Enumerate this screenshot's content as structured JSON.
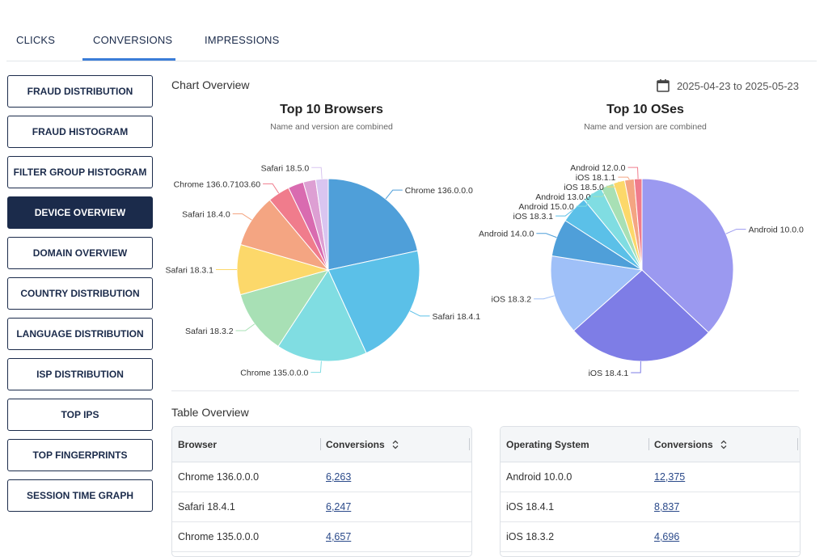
{
  "tabs": [
    "CLICKS",
    "CONVERSIONS",
    "IMPRESSIONS"
  ],
  "sidebar": [
    "FRAUD DISTRIBUTION",
    "FRAUD HISTOGRAM",
    "FILTER GROUP HISTOGRAM",
    "DEVICE OVERVIEW",
    "DOMAIN OVERVIEW",
    "COUNTRY DISTRIBUTION",
    "LANGUAGE DISTRIBUTION",
    "ISP DISTRIBUTION",
    "TOP IPS",
    "TOP FINGERPRINTS",
    "SESSION TIME GRAPH"
  ],
  "chart_overview": {
    "title": "Chart Overview",
    "date_range": "2025-04-23 to 2025-05-23"
  },
  "chart_data": [
    {
      "type": "pie",
      "title": "Top 10 Browsers",
      "subtitle": "Name and version are combined",
      "categories": [
        "Chrome 136.0.0.0",
        "Safari 18.4.1",
        "Chrome 135.0.0.0",
        "Safari 18.3.2",
        "Safari 18.3.1",
        "Safari 18.4.0",
        "Chrome 136.0.7103.60",
        null,
        null,
        "Safari 18.5.0"
      ],
      "values": [
        6263,
        6247,
        4657,
        3300,
        2570,
        2730,
        1130,
        800,
        640,
        640
      ],
      "colors": [
        "#4f9fd9",
        "#5bc0e8",
        "#80dde2",
        "#a8e0b5",
        "#fcd86a",
        "#f4a582",
        "#f07c8c",
        "#d96bb0",
        "#dd9fd3",
        "#d9c5f0"
      ]
    },
    {
      "type": "pie",
      "title": "Top 10 OSes",
      "subtitle": "Name and version are combined",
      "categories": [
        "Android 10.0.0",
        "iOS 18.4.1",
        "iOS 18.3.2",
        "Android 14.0.0",
        "iOS 18.3.1",
        "Android 15.0.0",
        "Android 13.0.0",
        "iOS 18.5.0",
        "iOS 18.1.1",
        "Android 12.0.0"
      ],
      "values": [
        12375,
        8837,
        4696,
        2220,
        1640,
        1200,
        770,
        680,
        560,
        460
      ],
      "colors": [
        "#9b99f0",
        "#7e7de6",
        "#9fc0f8",
        "#4f9fd9",
        "#5bc0e8",
        "#80dde2",
        "#a8e0b5",
        "#fcd86a",
        "#f4a582",
        "#f07c8c"
      ]
    }
  ],
  "table_overview": {
    "title": "Table Overview",
    "tables": [
      {
        "columns": [
          "Browser",
          "Conversions"
        ],
        "rows": [
          [
            "Chrome 136.0.0.0",
            "6,263"
          ],
          [
            "Safari 18.4.1",
            "6,247"
          ],
          [
            "Chrome 135.0.0.0",
            "4,657"
          ]
        ]
      },
      {
        "columns": [
          "Operating System",
          "Conversions"
        ],
        "rows": [
          [
            "Android 10.0.0",
            "12,375"
          ],
          [
            "iOS 18.4.1",
            "8,837"
          ],
          [
            "iOS 18.3.2",
            "4,696"
          ]
        ]
      }
    ]
  }
}
